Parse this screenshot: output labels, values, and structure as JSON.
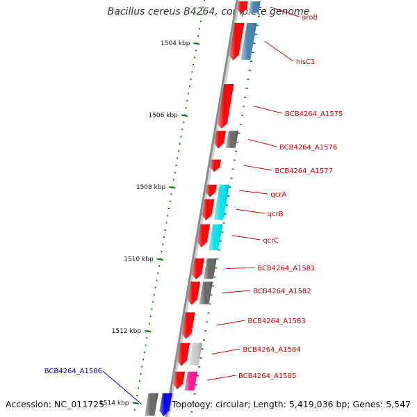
{
  "header": {
    "title": "Bacillus cereus B4264, complete genome"
  },
  "footer": {
    "accession": "Accession: NC_011725",
    "summary": "Topology: circular; Length: 5,419,036 bp; Genes: 5,547"
  },
  "colors": {
    "backbone": "#8c8c8c",
    "tick": "#0a7a0a",
    "label_default": "#cc0000",
    "label_highlight": "#0000cc",
    "red": "#ff0000",
    "gray": "#666666",
    "steelblue": "#4682b4",
    "cyan": "#00e5ee",
    "lightgray": "#c8c8c8",
    "magenta": "#ff1493",
    "blue": "#0000ee"
  },
  "ruler": {
    "kbp_start": 1502.8,
    "kbp_end": 1514.4,
    "major_ticks": [
      {
        "kbp": 1504,
        "label": "1504 kbp"
      },
      {
        "kbp": 1506,
        "label": "1506 kbp"
      },
      {
        "kbp": 1508,
        "label": "1508 kbp"
      },
      {
        "kbp": 1510,
        "label": "1510 kbp"
      },
      {
        "kbp": 1512,
        "label": "1512 kbp"
      },
      {
        "kbp": 1514,
        "label": "1514 kbp"
      }
    ]
  },
  "features": [
    {
      "name": "aroB",
      "lane": "inner",
      "start_kbp": 1502.8,
      "end_kbp": 1503.2,
      "color": "red",
      "label": "aroB"
    },
    {
      "name": "aroB-partner",
      "lane": "outer",
      "start_kbp": 1502.8,
      "end_kbp": 1503.2,
      "color": "steelblue"
    },
    {
      "name": "hisC1",
      "lane": "inner",
      "start_kbp": 1503.4,
      "end_kbp": 1504.5,
      "color": "red",
      "label": "hisC1"
    },
    {
      "name": "hisC1-partner",
      "lane": "outer",
      "start_kbp": 1503.4,
      "end_kbp": 1504.5,
      "color": "steelblue"
    },
    {
      "name": "BCB4264_A1575",
      "lane": "inner",
      "start_kbp": 1505.1,
      "end_kbp": 1506.4,
      "color": "red",
      "label": "BCB4264_A1575"
    },
    {
      "name": "BCB4264_A1576",
      "lane": "inner",
      "start_kbp": 1506.4,
      "end_kbp": 1506.95,
      "color": "red",
      "label": "BCB4264_A1576"
    },
    {
      "name": "BCB4264_A1576-partner",
      "lane": "outer",
      "start_kbp": 1506.4,
      "end_kbp": 1506.95,
      "color": "gray"
    },
    {
      "name": "BCB4264_A1577",
      "lane": "inner",
      "start_kbp": 1507.2,
      "end_kbp": 1507.6,
      "color": "red",
      "label": "BCB4264_A1577"
    },
    {
      "name": "qcrA",
      "lane": "inner",
      "start_kbp": 1507.9,
      "end_kbp": 1508.3,
      "color": "red",
      "label": "qcrA"
    },
    {
      "name": "qcrA-partner",
      "lane": "outer",
      "start_kbp": 1507.9,
      "end_kbp": 1508.95,
      "color": "cyan"
    },
    {
      "name": "qcrB",
      "lane": "inner",
      "start_kbp": 1508.3,
      "end_kbp": 1508.95,
      "color": "red",
      "label": "qcrB"
    },
    {
      "name": "qcrC",
      "lane": "inner",
      "start_kbp": 1509.0,
      "end_kbp": 1509.7,
      "color": "red",
      "label": "qcrC"
    },
    {
      "name": "qcrC-partner",
      "lane": "outer",
      "start_kbp": 1509.0,
      "end_kbp": 1509.8,
      "color": "cyan"
    },
    {
      "name": "BCB4264_A1581",
      "lane": "inner",
      "start_kbp": 1509.95,
      "end_kbp": 1510.6,
      "color": "red",
      "label": "BCB4264_A1581"
    },
    {
      "name": "BCB4264_A1581-partner",
      "lane": "outer",
      "start_kbp": 1509.95,
      "end_kbp": 1510.6,
      "color": "gray"
    },
    {
      "name": "BCB4264_A1582",
      "lane": "inner",
      "start_kbp": 1510.6,
      "end_kbp": 1511.3,
      "color": "red",
      "label": "BCB4264_A1582"
    },
    {
      "name": "BCB4264_A1582-partner",
      "lane": "outer",
      "start_kbp": 1510.6,
      "end_kbp": 1511.3,
      "color": "gray"
    },
    {
      "name": "BCB4264_A1583",
      "lane": "inner",
      "start_kbp": 1511.45,
      "end_kbp": 1512.25,
      "color": "red",
      "label": "BCB4264_A1583"
    },
    {
      "name": "BCB4264_A1584",
      "lane": "inner",
      "start_kbp": 1512.3,
      "end_kbp": 1513.0,
      "color": "red",
      "label": "BCB4264_A1584"
    },
    {
      "name": "BCB4264_A1584-partner",
      "lane": "outer",
      "start_kbp": 1512.3,
      "end_kbp": 1513.0,
      "color": "lightgray"
    },
    {
      "name": "BCB4264_A1585",
      "lane": "inner",
      "start_kbp": 1513.1,
      "end_kbp": 1513.65,
      "color": "red",
      "label": "BCB4264_A1585"
    },
    {
      "name": "BCB4264_A1585-partner",
      "lane": "outer",
      "start_kbp": 1513.1,
      "end_kbp": 1513.7,
      "color": "magenta"
    },
    {
      "name": "BCB4264_A1586",
      "lane": "outer-left",
      "start_kbp": 1513.7,
      "end_kbp": 1514.4,
      "color": "gray",
      "label": "BCB4264_A1586",
      "highlight": true
    },
    {
      "name": "BCB4264_A1586-partner",
      "lane": "outer-left-2",
      "start_kbp": 1513.7,
      "end_kbp": 1514.4,
      "color": "blue"
    }
  ]
}
